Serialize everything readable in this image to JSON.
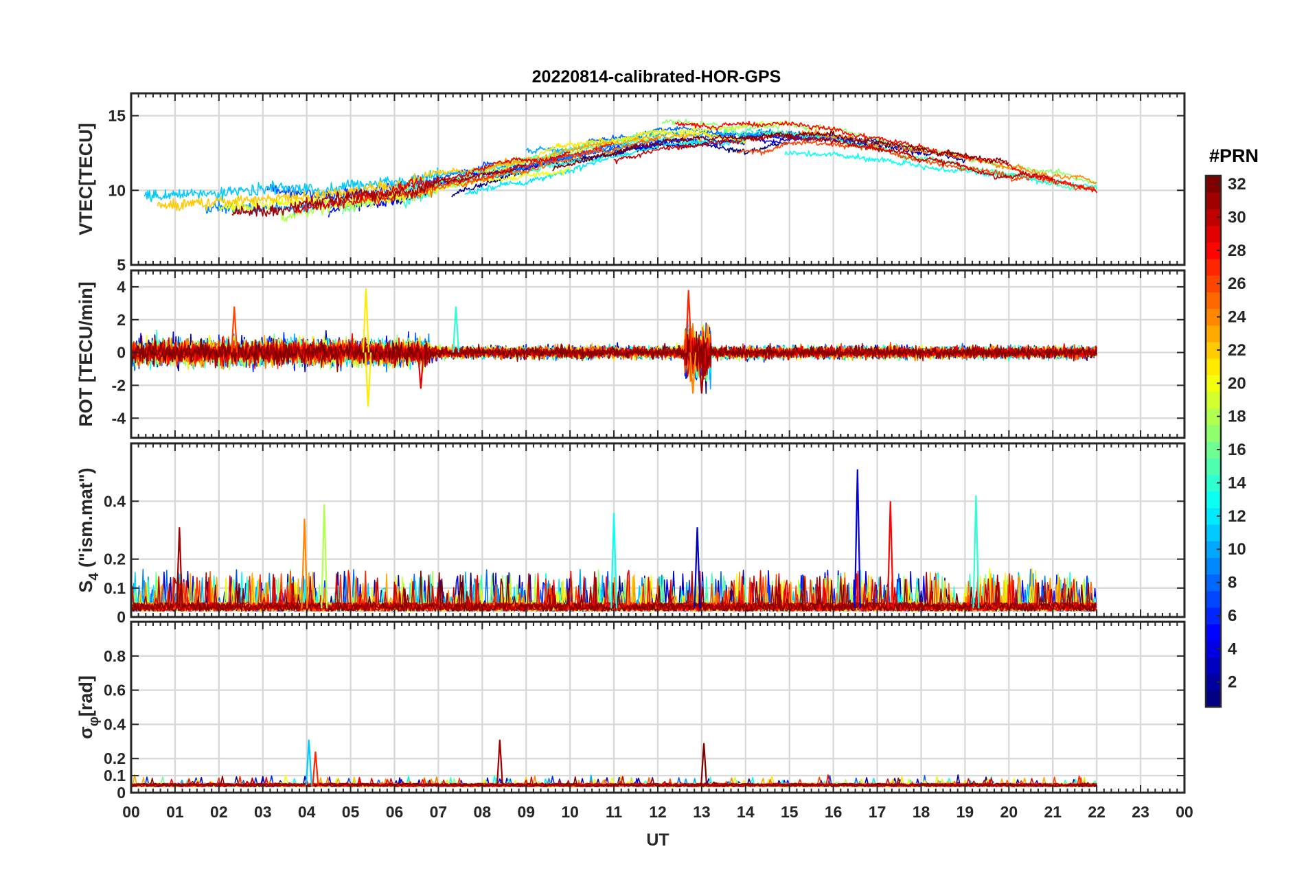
{
  "chart_data": {
    "type": "line",
    "title": "20220814-calibrated-HOR-GPS",
    "xlabel": "UT",
    "x_ticks": [
      "00",
      "01",
      "02",
      "03",
      "04",
      "05",
      "06",
      "07",
      "08",
      "09",
      "10",
      "11",
      "12",
      "13",
      "14",
      "15",
      "16",
      "17",
      "18",
      "19",
      "20",
      "21",
      "22",
      "23",
      "00"
    ],
    "x_range_hours": [
      0,
      24
    ],
    "data_end_hour": 22,
    "grid": true,
    "panels": [
      {
        "id": "vtec",
        "ylabel": "VTEC[TECU]",
        "ylim": [
          5,
          16.5
        ],
        "yticks": [
          5,
          10,
          15
        ],
        "ytick_labels": [
          "5",
          "10",
          "15"
        ],
        "description_series": "one noisy trace per PRN, values mostly 6–16 TECU, rising from ~8 at 00 UT to ~13–15 at 12–15 UT then falling to ~10 at 22 UT"
      },
      {
        "id": "rot",
        "ylabel": "ROT [TECU/min]",
        "ylim": [
          -5.2,
          5
        ],
        "yticks": [
          -4,
          -2,
          0,
          2,
          4
        ],
        "ytick_labels": [
          "-4",
          "-2",
          "0",
          "2",
          "4"
        ],
        "description_series": "fluctuations around 0 TECU/min, mostly within ±1, spikes up to ~3.8 near 05 and 13 UT"
      },
      {
        "id": "s4",
        "ylabel_main": "S",
        "ylabel_sub": "4",
        "ylabel_tail": " (\"ism.mat\")",
        "ylim": [
          0,
          0.6
        ],
        "yticks": [
          0,
          0.1,
          0.2,
          0.4
        ],
        "ytick_labels": [
          "0",
          "0.1",
          "0.2",
          "0.4"
        ],
        "description_series": "scintillation index mostly 0–0.15 with spikes up to ~0.5 near 16.5 UT"
      },
      {
        "id": "sigphi",
        "ylabel_main": "σ",
        "ylabel_sub": "φ",
        "ylabel_tail": "[rad]",
        "ylim": [
          0,
          1
        ],
        "yticks": [
          0,
          0.1,
          0.2,
          0.4,
          0.6,
          0.8
        ],
        "ytick_labels": [
          "0",
          "0.1",
          "0.2",
          "0.4",
          "0.6",
          "0.8"
        ],
        "description_series": "phase scintillation mostly ~0.03–0.06 rad, spikes ~0.3 near 04, 08.4 and 13 UT"
      }
    ],
    "colorbar": {
      "label": "#PRN",
      "range": [
        1,
        32
      ],
      "ticks": [
        2,
        4,
        6,
        8,
        10,
        12,
        14,
        16,
        18,
        20,
        22,
        24,
        26,
        28,
        30,
        32
      ],
      "colormap": "jet"
    },
    "series_count": 32,
    "spikes": {
      "rot": [
        {
          "hour": 2.35,
          "value": 2.8,
          "prn": 26
        },
        {
          "hour": 5.35,
          "value": 3.9,
          "prn": 21
        },
        {
          "hour": 5.4,
          "value": -3.3,
          "prn": 21
        },
        {
          "hour": 6.6,
          "value": -2.2,
          "prn": 29
        },
        {
          "hour": 12.7,
          "value": 3.8,
          "prn": 27
        },
        {
          "hour": 12.8,
          "value": -2.5,
          "prn": 24
        },
        {
          "hour": 13.0,
          "value": -2.5,
          "prn": 31
        },
        {
          "hour": 7.4,
          "value": 2.8,
          "prn": 14
        }
      ],
      "s4": [
        {
          "hour": 16.55,
          "value": 0.51,
          "prn": 4
        },
        {
          "hour": 17.3,
          "value": 0.4,
          "prn": 28
        },
        {
          "hour": 4.4,
          "value": 0.39,
          "prn": 18
        },
        {
          "hour": 19.25,
          "value": 0.42,
          "prn": 14
        },
        {
          "hour": 1.1,
          "value": 0.31,
          "prn": 31
        },
        {
          "hour": 12.9,
          "value": 0.31,
          "prn": 3
        },
        {
          "hour": 3.95,
          "value": 0.34,
          "prn": 24
        },
        {
          "hour": 11.0,
          "value": 0.36,
          "prn": 13
        }
      ],
      "sigphi": [
        {
          "hour": 4.05,
          "value": 0.31,
          "prn": 11
        },
        {
          "hour": 4.2,
          "value": 0.24,
          "prn": 27
        },
        {
          "hour": 8.4,
          "value": 0.31,
          "prn": 31
        },
        {
          "hour": 13.05,
          "value": 0.29,
          "prn": 32
        }
      ]
    }
  }
}
